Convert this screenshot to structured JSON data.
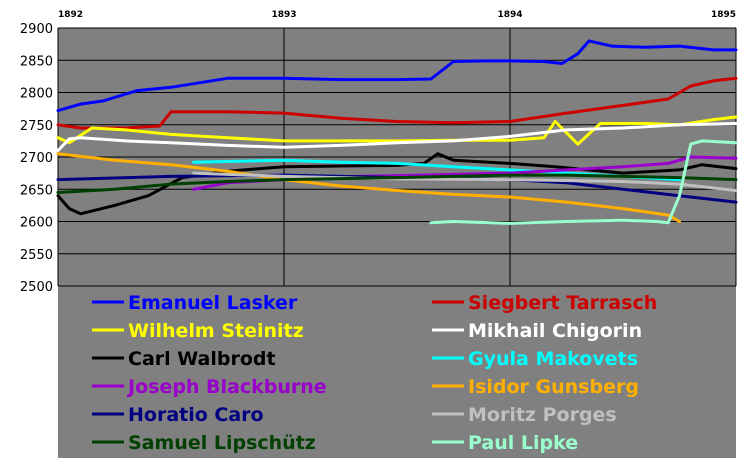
{
  "chart_data": {
    "type": "line",
    "title": "",
    "xlabel": "",
    "ylabel": "",
    "xlim": [
      1892,
      1895
    ],
    "ylim": [
      2500,
      2900
    ],
    "x_ticks": [
      "1892",
      "1893",
      "1894",
      "1895"
    ],
    "y_ticks": [
      "2500",
      "2550",
      "2600",
      "2650",
      "2700",
      "2750",
      "2800",
      "2850",
      "2900"
    ],
    "grid": true,
    "legend_position": "bottom",
    "plot_background": "#808080",
    "series": [
      {
        "name": "Emanuel Lasker",
        "color": "#0000FF",
        "points": [
          [
            1892.0,
            2772
          ],
          [
            1892.1,
            2782
          ],
          [
            1892.2,
            2787
          ],
          [
            1892.35,
            2803
          ],
          [
            1892.5,
            2808
          ],
          [
            1892.75,
            2822
          ],
          [
            1893.0,
            2822
          ],
          [
            1893.25,
            2820
          ],
          [
            1893.5,
            2820
          ],
          [
            1893.65,
            2821
          ],
          [
            1893.75,
            2848
          ],
          [
            1893.9,
            2849
          ],
          [
            1894.0,
            2849
          ],
          [
            1894.15,
            2848
          ],
          [
            1894.23,
            2845
          ],
          [
            1894.3,
            2860
          ],
          [
            1894.35,
            2880
          ],
          [
            1894.45,
            2872
          ],
          [
            1894.6,
            2870
          ],
          [
            1894.75,
            2872
          ],
          [
            1894.9,
            2866
          ],
          [
            1895.0,
            2866
          ]
        ]
      },
      {
        "name": "Siegbert Tarrasch",
        "color": "#CC0000",
        "points": [
          [
            1892.0,
            2750
          ],
          [
            1892.1,
            2745
          ],
          [
            1892.3,
            2745
          ],
          [
            1892.45,
            2748
          ],
          [
            1892.5,
            2770
          ],
          [
            1892.75,
            2770
          ],
          [
            1893.0,
            2768
          ],
          [
            1893.25,
            2760
          ],
          [
            1893.5,
            2755
          ],
          [
            1893.75,
            2753
          ],
          [
            1894.0,
            2755
          ],
          [
            1894.25,
            2768
          ],
          [
            1894.5,
            2780
          ],
          [
            1894.7,
            2790
          ],
          [
            1894.8,
            2810
          ],
          [
            1894.9,
            2818
          ],
          [
            1895.0,
            2822
          ]
        ]
      },
      {
        "name": "Wilhelm Steinitz",
        "color": "#FFFF00",
        "points": [
          [
            1892.0,
            2730
          ],
          [
            1892.05,
            2722
          ],
          [
            1892.15,
            2745
          ],
          [
            1892.3,
            2742
          ],
          [
            1892.5,
            2735
          ],
          [
            1892.75,
            2730
          ],
          [
            1893.0,
            2725
          ],
          [
            1893.5,
            2725
          ],
          [
            1893.75,
            2726
          ],
          [
            1894.0,
            2726
          ],
          [
            1894.15,
            2730
          ],
          [
            1894.2,
            2755
          ],
          [
            1894.3,
            2720
          ],
          [
            1894.4,
            2752
          ],
          [
            1894.6,
            2752
          ],
          [
            1894.75,
            2750
          ],
          [
            1894.9,
            2758
          ],
          [
            1895.0,
            2762
          ]
        ]
      },
      {
        "name": "Mikhail Chigorin",
        "color": "#FFFFFF",
        "points": [
          [
            1892.0,
            2710
          ],
          [
            1892.05,
            2728
          ],
          [
            1892.1,
            2730
          ],
          [
            1892.3,
            2725
          ],
          [
            1892.5,
            2722
          ],
          [
            1892.75,
            2718
          ],
          [
            1893.0,
            2715
          ],
          [
            1893.25,
            2718
          ],
          [
            1893.5,
            2722
          ],
          [
            1893.75,
            2725
          ],
          [
            1894.0,
            2732
          ],
          [
            1894.25,
            2742
          ],
          [
            1894.5,
            2745
          ],
          [
            1894.75,
            2750
          ],
          [
            1895.0,
            2752
          ]
        ]
      },
      {
        "name": "Carl Walbrodt",
        "color": "#000000",
        "points": [
          [
            1892.0,
            2640
          ],
          [
            1892.05,
            2620
          ],
          [
            1892.1,
            2612
          ],
          [
            1892.25,
            2625
          ],
          [
            1892.4,
            2640
          ],
          [
            1892.55,
            2668
          ],
          [
            1892.75,
            2678
          ],
          [
            1893.0,
            2685
          ],
          [
            1893.25,
            2686
          ],
          [
            1893.5,
            2687
          ],
          [
            1893.62,
            2690
          ],
          [
            1893.68,
            2705
          ],
          [
            1893.75,
            2695
          ],
          [
            1894.0,
            2690
          ],
          [
            1894.2,
            2685
          ],
          [
            1894.5,
            2675
          ],
          [
            1894.75,
            2680
          ],
          [
            1894.85,
            2688
          ],
          [
            1895.0,
            2682
          ]
        ]
      },
      {
        "name": "Gyula Makovets",
        "color": "#00FFFF",
        "points": [
          [
            1892.6,
            2692
          ],
          [
            1892.75,
            2693
          ],
          [
            1893.0,
            2695
          ],
          [
            1893.25,
            2692
          ],
          [
            1893.5,
            2690
          ],
          [
            1893.75,
            2685
          ],
          [
            1894.0,
            2680
          ],
          [
            1894.25,
            2675
          ],
          [
            1894.5,
            2670
          ],
          [
            1894.75,
            2665
          ]
        ]
      },
      {
        "name": "Joseph Blackburne",
        "color": "#9900CC",
        "points": [
          [
            1892.6,
            2650
          ],
          [
            1892.75,
            2660
          ],
          [
            1893.0,
            2665
          ],
          [
            1893.1,
            2668
          ],
          [
            1894.0,
            2675
          ],
          [
            1894.25,
            2680
          ],
          [
            1894.5,
            2685
          ],
          [
            1894.7,
            2690
          ],
          [
            1894.8,
            2700
          ],
          [
            1895.0,
            2698
          ]
        ]
      },
      {
        "name": "Isidor Gunsberg",
        "color": "#FFB000",
        "points": [
          [
            1892.0,
            2705
          ],
          [
            1892.25,
            2695
          ],
          [
            1892.5,
            2688
          ],
          [
            1892.75,
            2678
          ],
          [
            1893.0,
            2665
          ],
          [
            1893.25,
            2655
          ],
          [
            1893.5,
            2648
          ],
          [
            1893.75,
            2642
          ],
          [
            1894.0,
            2638
          ],
          [
            1894.25,
            2630
          ],
          [
            1894.5,
            2620
          ],
          [
            1894.7,
            2610
          ],
          [
            1894.75,
            2600
          ]
        ]
      },
      {
        "name": "Horatio Caro",
        "color": "#000080",
        "points": [
          [
            1892.0,
            2665
          ],
          [
            1892.5,
            2670
          ],
          [
            1893.0,
            2672
          ],
          [
            1893.5,
            2668
          ],
          [
            1894.0,
            2665
          ],
          [
            1894.25,
            2660
          ],
          [
            1894.5,
            2650
          ],
          [
            1894.75,
            2640
          ],
          [
            1895.0,
            2630
          ]
        ]
      },
      {
        "name": "Moritz Porges",
        "color": "#C0C0C0",
        "points": [
          [
            1892.6,
            2675
          ],
          [
            1893.0,
            2670
          ],
          [
            1893.5,
            2666
          ],
          [
            1894.0,
            2665
          ],
          [
            1894.5,
            2662
          ],
          [
            1894.75,
            2658
          ],
          [
            1895.0,
            2648
          ]
        ]
      },
      {
        "name": "Samuel Lipschütz",
        "color": "#004000",
        "points": [
          [
            1892.0,
            2645
          ],
          [
            1892.25,
            2650
          ],
          [
            1892.5,
            2658
          ],
          [
            1892.75,
            2662
          ],
          [
            1893.0,
            2665
          ],
          [
            1893.5,
            2668
          ],
          [
            1893.75,
            2670
          ],
          [
            1894.0,
            2672
          ],
          [
            1894.25,
            2672
          ],
          [
            1894.5,
            2670
          ],
          [
            1894.75,
            2668
          ],
          [
            1895.0,
            2665
          ]
        ]
      },
      {
        "name": "Paul Lipke",
        "color": "#99FFCC",
        "points": [
          [
            1893.65,
            2598
          ],
          [
            1893.75,
            2600
          ],
          [
            1894.0,
            2597
          ],
          [
            1894.25,
            2600
          ],
          [
            1894.5,
            2602
          ],
          [
            1894.65,
            2600
          ],
          [
            1894.7,
            2598
          ],
          [
            1894.75,
            2640
          ],
          [
            1894.8,
            2720
          ],
          [
            1894.85,
            2725
          ],
          [
            1895.0,
            2722
          ]
        ]
      }
    ]
  }
}
